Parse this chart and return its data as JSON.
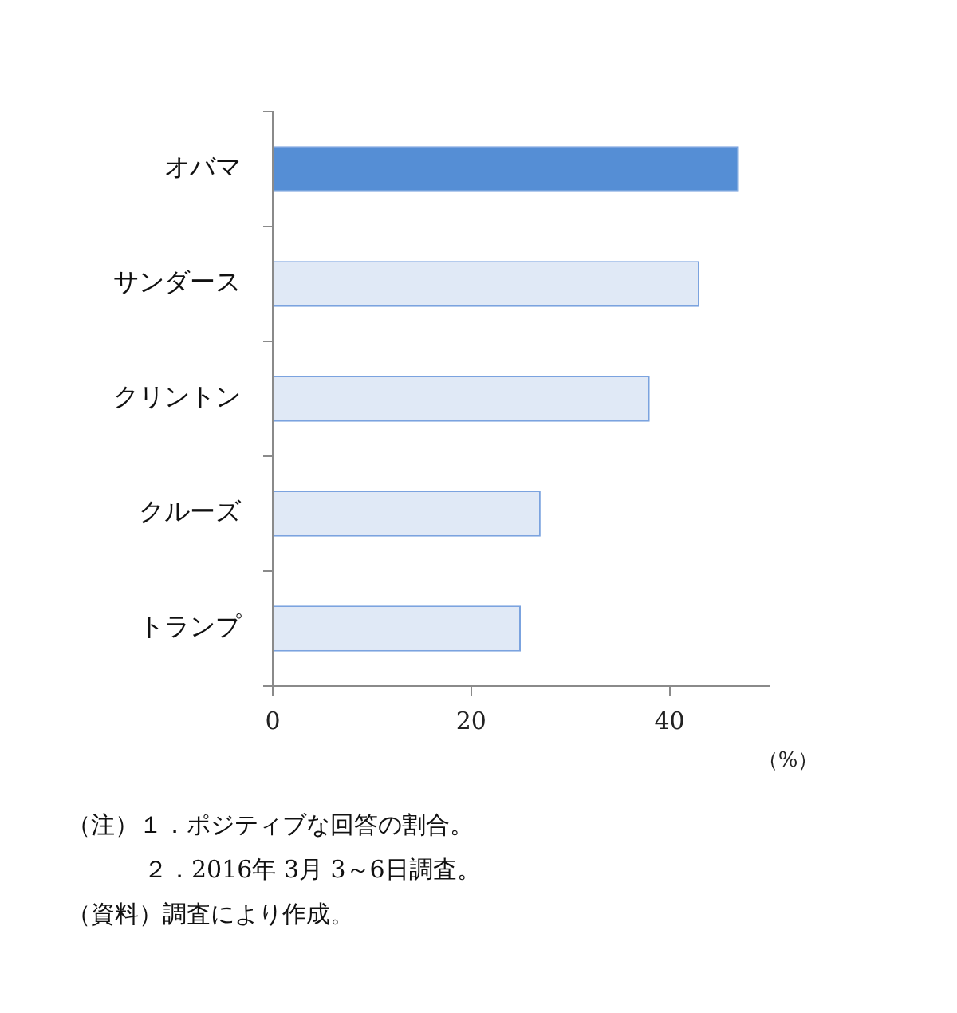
{
  "chart_data": {
    "type": "bar",
    "orientation": "horizontal",
    "categories": [
      "オバマ",
      "サンダース",
      "クリントン",
      "クルーズ",
      "トランプ"
    ],
    "values": [
      47,
      43,
      38,
      27,
      25
    ],
    "colors": [
      "#558ed5",
      "#e0e9f6",
      "#e0e9f6",
      "#e0e9f6",
      "#e0e9f6"
    ],
    "xlim": [
      0,
      50
    ],
    "xticks": [
      0,
      20,
      40
    ],
    "xlabel": "（%）",
    "grid": false,
    "legend": false,
    "annotations": [
      "（注）１．ポジティブな回答の割合。",
      "２．2016年 3月 3～6日調査。",
      "（資料）調査により作成。"
    ]
  }
}
